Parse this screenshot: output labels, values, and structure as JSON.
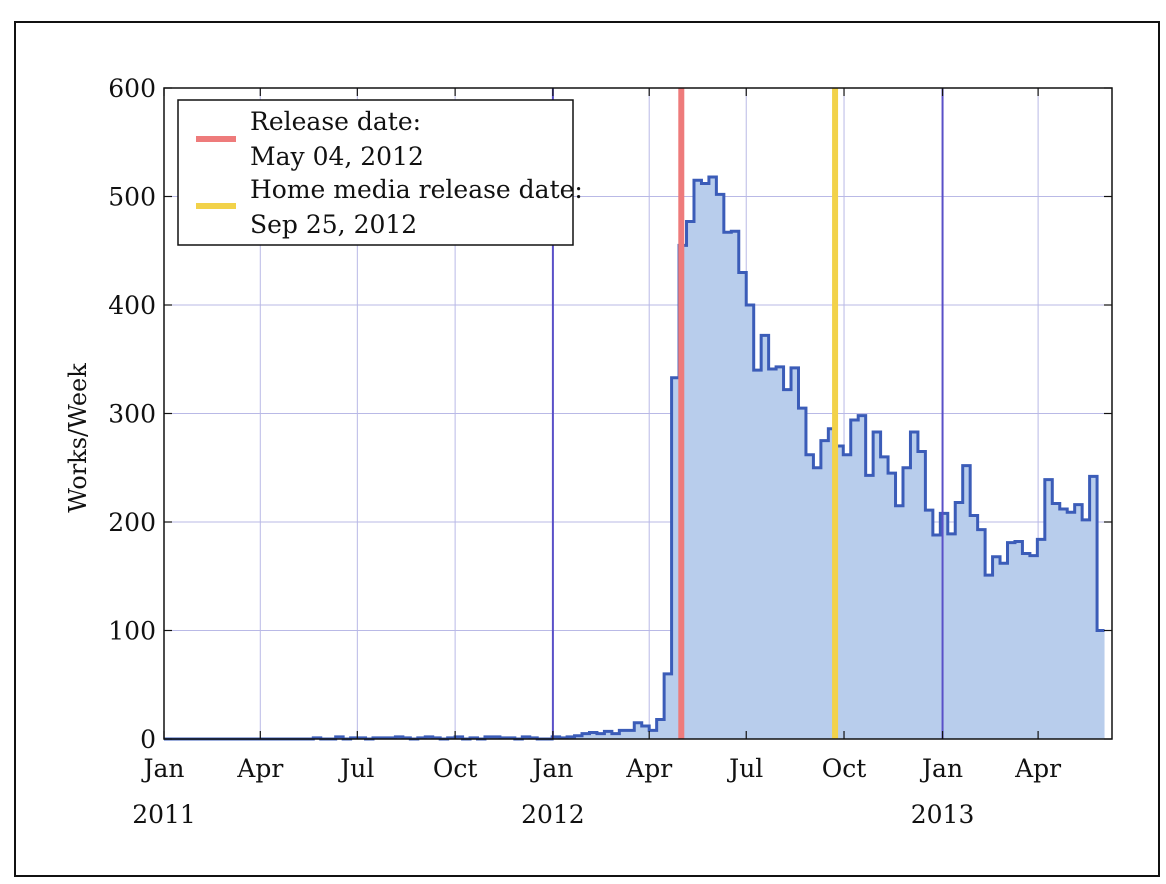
{
  "chart_data": {
    "type": "area",
    "title": "",
    "xlabel": "",
    "ylabel": "Works/Week",
    "ylim": [
      0,
      600
    ],
    "y_ticks": [
      0,
      100,
      200,
      300,
      400,
      500,
      600
    ],
    "x_range_weeks": [
      0,
      127
    ],
    "x_ticks": [
      {
        "week": 0,
        "label": "Jan"
      },
      {
        "week": 12.9,
        "label": "Apr"
      },
      {
        "week": 25.9,
        "label": "Jul"
      },
      {
        "week": 39,
        "label": "Oct"
      },
      {
        "week": 52.1,
        "label": "Jan"
      },
      {
        "week": 65,
        "label": "Apr"
      },
      {
        "week": 78,
        "label": "Jul"
      },
      {
        "week": 91.1,
        "label": "Oct"
      },
      {
        "week": 104.3,
        "label": "Jan"
      },
      {
        "week": 117.1,
        "label": "Apr"
      }
    ],
    "year_labels": [
      {
        "week": 0,
        "label": "2011"
      },
      {
        "week": 52.1,
        "label": "2012"
      },
      {
        "week": 104.3,
        "label": "2013"
      }
    ],
    "year_lines_weeks": [
      52.1,
      104.3
    ],
    "grid": true,
    "series": [
      {
        "name": "Works/Week",
        "color": "#3b5cb8",
        "fill": "#b8cdec",
        "values": [
          0,
          0,
          0,
          0,
          0,
          0,
          0,
          0,
          0,
          0,
          0,
          0,
          0,
          0,
          0,
          0,
          0,
          0,
          0,
          0,
          1,
          0,
          0,
          2,
          0,
          1,
          1,
          0,
          1,
          1,
          1,
          2,
          1,
          0,
          1,
          2,
          1,
          0,
          1,
          2,
          0,
          1,
          0,
          2,
          2,
          1,
          1,
          0,
          2,
          1,
          0,
          0,
          2,
          1,
          2,
          3,
          5,
          6,
          5,
          7,
          5,
          8,
          8,
          15,
          12,
          8,
          18,
          60,
          333,
          455,
          477,
          515,
          512,
          518,
          502,
          467,
          468,
          430,
          400,
          340,
          372,
          341,
          343,
          322,
          342,
          305,
          262,
          250,
          275,
          286,
          270,
          262,
          294,
          298,
          243,
          283,
          260,
          245,
          215,
          250,
          283,
          265,
          211,
          188,
          208,
          189,
          218,
          252,
          206,
          193,
          151,
          168,
          162,
          181,
          182,
          171,
          169,
          184,
          239,
          217,
          212,
          209,
          216,
          202,
          242,
          100
        ]
      }
    ],
    "events": [
      {
        "label": "Release date:",
        "date": "May 04, 2012",
        "week": 69.3,
        "color": "#ee7b7b"
      },
      {
        "label": "Home media release date:",
        "date": "Sep 25, 2012",
        "week": 89.9,
        "color": "#f2d24a"
      }
    ]
  }
}
